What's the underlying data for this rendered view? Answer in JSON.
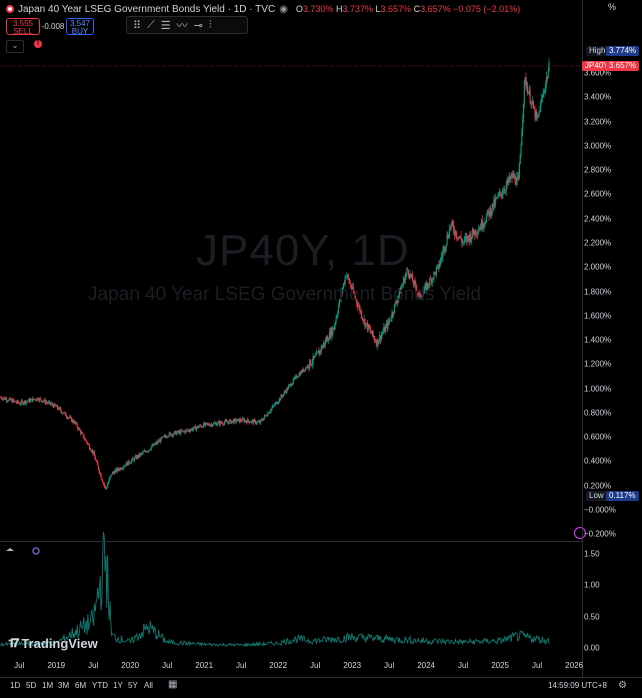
{
  "header": {
    "title": "Japan 40 Year LSEG Government Bonds Yield · 1D · TVC",
    "ohlc": [
      {
        "k": "O",
        "v": "3.730%"
      },
      {
        "k": "H",
        "v": "3.737%"
      },
      {
        "k": "L",
        "v": "3.657%"
      },
      {
        "k": "C",
        "v": "3.657%"
      }
    ],
    "change": "−0.075 (−2.01%)",
    "percent_mode": "%"
  },
  "trade": {
    "sell_price": "3.555",
    "sell_label": "SELL",
    "spread": "-0.008",
    "buy_price": "3.547",
    "buy_label": "BUY"
  },
  "watermark": {
    "symbol": "JP40Y, 1D",
    "name": "Japan 40 Year LSEG Government Bonds Yield"
  },
  "price_scale": {
    "ticks": [
      "3.600%",
      "3.400%",
      "3.200%",
      "3.000%",
      "2.800%",
      "2.600%",
      "2.400%",
      "2.200%",
      "2.000%",
      "1.800%",
      "1.600%",
      "1.400%",
      "1.200%",
      "1.000%",
      "0.800%",
      "0.600%",
      "0.400%",
      "0.200%",
      "−0.000%",
      "−0.200%"
    ],
    "high_label": "High",
    "high_value": "3.774%",
    "last_symbol": "JP40Y",
    "last_value": "3.657%",
    "low_label": "Low",
    "low_value": "0.117%"
  },
  "volume_scale": {
    "ticks": [
      "1.50",
      "1.00",
      "0.50",
      "0.00"
    ]
  },
  "time_axis": [
    "Jul",
    "2019",
    "Jul",
    "2020",
    "Jul",
    "2021",
    "Jul",
    "2022",
    "Jul",
    "2023",
    "Jul",
    "2024",
    "Jul",
    "2025",
    "Jul",
    "2026"
  ],
  "ranges": [
    "1D",
    "5D",
    "1M",
    "3M",
    "6M",
    "YTD",
    "1Y",
    "5Y",
    "All"
  ],
  "clock": "14:59:09 UTC+8",
  "logo": "TradingView",
  "colors": {
    "up": "#089981",
    "down": "#f23645",
    "accent": "#2962ff",
    "volume": "#0f7a70"
  },
  "chart_data": {
    "type": "line",
    "title": "Japan 40 Year LSEG Government Bonds Yield",
    "series": [
      {
        "name": "JP40Y",
        "x": [
          "2018-04",
          "2018-07",
          "2018-10",
          "2019-01",
          "2019-04",
          "2019-07",
          "2019-09",
          "2019-10",
          "2020-01",
          "2020-04",
          "2020-07",
          "2020-10",
          "2021-01",
          "2021-04",
          "2021-07",
          "2021-10",
          "2022-01",
          "2022-04",
          "2022-07",
          "2022-10",
          "2022-12",
          "2023-03",
          "2023-05",
          "2023-07",
          "2023-10",
          "2023-12",
          "2024-03",
          "2024-05",
          "2024-07",
          "2024-10",
          "2025-01",
          "2025-03",
          "2025-04",
          "2025-05",
          "2025-07",
          "2025-09"
        ],
        "values": [
          0.93,
          0.88,
          0.92,
          0.85,
          0.72,
          0.47,
          0.17,
          0.3,
          0.4,
          0.5,
          0.62,
          0.65,
          0.7,
          0.72,
          0.74,
          0.72,
          0.9,
          1.1,
          1.25,
          1.5,
          1.95,
          1.55,
          1.38,
          1.55,
          1.98,
          1.75,
          2.0,
          2.35,
          2.2,
          2.35,
          2.6,
          2.75,
          2.7,
          3.55,
          3.2,
          3.66
        ]
      }
    ],
    "indicator": {
      "name": "volatility",
      "x": [
        "2018-04",
        "2019-01",
        "2019-07",
        "2019-09",
        "2019-10",
        "2020-01",
        "2020-04",
        "2020-07",
        "2021-01",
        "2021-07",
        "2022-01",
        "2022-04",
        "2022-07",
        "2023-01",
        "2023-07",
        "2024-01",
        "2024-07",
        "2025-01",
        "2025-04",
        "2025-09"
      ],
      "values": [
        0.06,
        0.08,
        0.45,
        1.55,
        0.2,
        0.1,
        0.35,
        0.1,
        0.06,
        0.05,
        0.08,
        0.15,
        0.12,
        0.18,
        0.15,
        0.12,
        0.1,
        0.12,
        0.2,
        0.12
      ]
    },
    "ylim": [
      -0.2,
      3.8
    ],
    "volume_ylim": [
      0,
      1.6
    ],
    "high": 3.774,
    "low": 0.117,
    "grid": false
  }
}
